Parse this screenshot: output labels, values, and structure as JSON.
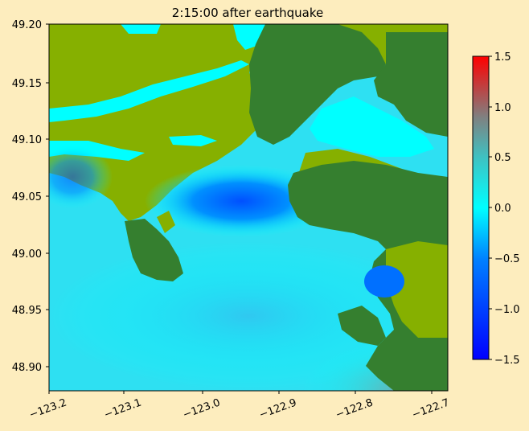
{
  "figure": {
    "title": "2:15:00 after earthquake",
    "background": "#FDEDBE"
  },
  "map": {
    "x_ticks": [
      "−123.2",
      "−123.1",
      "−123.0",
      "−122.9",
      "−122.8",
      "−122.7"
    ],
    "y_ticks": [
      "49.20",
      "49.15",
      "49.10",
      "49.05",
      "49.00",
      "48.95",
      "48.90"
    ],
    "x_range": [
      -123.2,
      -122.69
    ],
    "y_range": [
      48.88,
      49.2
    ],
    "colors": {
      "water": "#00FFFF",
      "lowland": "#86B000",
      "upland": "#357F2F",
      "deep_wave": "#0050FF"
    }
  },
  "colorbar": {
    "ticks": [
      "1.5",
      "1.0",
      "0.5",
      "0.0",
      "−0.5",
      "−1.0",
      "−1.5"
    ],
    "range": [
      -1.5,
      1.5
    ],
    "colors": [
      "#0000FF",
      "#00FFFF",
      "#808080",
      "#FF0000"
    ]
  }
}
